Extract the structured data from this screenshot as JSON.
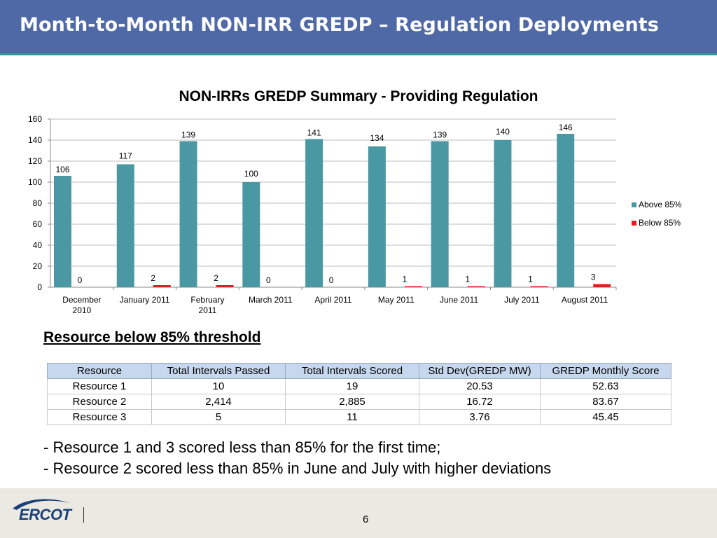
{
  "header": {
    "title": "Month-to-Month NON-IRR GREDP – Regulation Deployments"
  },
  "chart_data": {
    "type": "bar",
    "title": "NON-IRRs GREDP Summary - Providing Regulation",
    "xlabel": "",
    "ylabel": "",
    "categories": [
      [
        "December",
        "2010"
      ],
      [
        "January 2011"
      ],
      [
        "February",
        "2011"
      ],
      [
        "March 2011"
      ],
      [
        "April 2011"
      ],
      [
        "May 2011"
      ],
      [
        "June 2011"
      ],
      [
        "July 2011"
      ],
      [
        "August 2011"
      ]
    ],
    "series": [
      {
        "name": "Above 85%",
        "values": [
          106,
          117,
          139,
          100,
          141,
          134,
          139,
          140,
          146
        ],
        "color": "#4a98a4"
      },
      {
        "name": "Below 85%",
        "values": [
          0,
          2,
          2,
          0,
          0,
          1,
          1,
          1,
          3
        ],
        "color": "#e02020"
      }
    ],
    "ylim": [
      0,
      160
    ],
    "yticks": [
      0,
      20,
      40,
      60,
      80,
      100,
      120,
      140,
      160
    ],
    "grid": true,
    "legend": "right"
  },
  "section": {
    "heading": "Resource below 85% threshold"
  },
  "table": {
    "headers": [
      "Resource",
      "Total Intervals Passed",
      "Total Intervals Scored",
      "Std Dev(GREDP MW)",
      "GREDP Monthly Score"
    ],
    "rows": [
      [
        "Resource 1",
        "10",
        "19",
        "20.53",
        "52.63"
      ],
      [
        "Resource 2",
        "2,414",
        "2,885",
        "16.72",
        "83.67"
      ],
      [
        "Resource 3",
        "5",
        "11",
        "3.76",
        "45.45"
      ]
    ]
  },
  "notes": [
    "- Resource 1 and 3 scored less than 85% for the first time;",
    "- Resource 2 scored less than 85% in June and July with higher deviations"
  ],
  "footer": {
    "logo_text": "ERCOT",
    "page_number": "6"
  }
}
